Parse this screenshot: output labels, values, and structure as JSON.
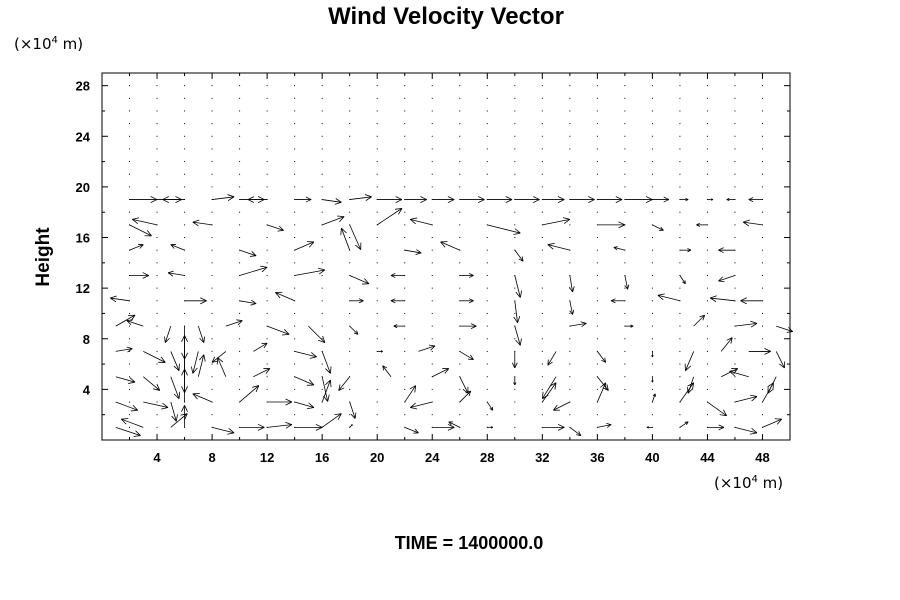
{
  "chart_data": {
    "type": "vector-field",
    "title": "Wind Velocity Vector",
    "ylabel": "Height",
    "xlabel": "",
    "x_unit": {
      "pre": "(×10",
      "exp": "4",
      "post": " m)"
    },
    "y_unit": {
      "pre": "(×10",
      "exp": "4",
      "post": " m)"
    },
    "time_label": "TIME = 1400000.0",
    "xlim": [
      0,
      50
    ],
    "ylim": [
      0,
      29
    ],
    "xticks": [
      4,
      8,
      12,
      16,
      20,
      24,
      28,
      32,
      36,
      40,
      44,
      48
    ],
    "yticks": [
      4,
      8,
      12,
      16,
      20,
      24,
      28
    ],
    "grid": {
      "x_start": 2,
      "x_step": 2,
      "x_count": 25,
      "y_start": 1,
      "y_step": 1,
      "y_count": 28
    },
    "vectors": [
      {
        "x": 2,
        "y": 19,
        "u": 2.0,
        "v": 0.0
      },
      {
        "x": 4,
        "y": 19,
        "u": 1.8,
        "v": 0.0
      },
      {
        "x": 6,
        "y": 19,
        "u": -1.6,
        "v": 0.0
      },
      {
        "x": 8,
        "y": 19,
        "u": 1.6,
        "v": 0.2
      },
      {
        "x": 10,
        "y": 19,
        "u": 1.8,
        "v": 0.0
      },
      {
        "x": 12,
        "y": 19,
        "u": -1.4,
        "v": 0.0
      },
      {
        "x": 14,
        "y": 19,
        "u": 1.2,
        "v": 0.0
      },
      {
        "x": 16,
        "y": 19,
        "u": 1.4,
        "v": -0.2
      },
      {
        "x": 18,
        "y": 19,
        "u": 1.6,
        "v": 0.2
      },
      {
        "x": 20,
        "y": 19,
        "u": 1.8,
        "v": 0.0
      },
      {
        "x": 22,
        "y": 19,
        "u": 1.6,
        "v": 0.0
      },
      {
        "x": 24,
        "y": 19,
        "u": 1.6,
        "v": 0.0
      },
      {
        "x": 26,
        "y": 19,
        "u": 1.8,
        "v": 0.0
      },
      {
        "x": 28,
        "y": 19,
        "u": 1.8,
        "v": 0.0
      },
      {
        "x": 30,
        "y": 19,
        "u": 1.8,
        "v": 0.0
      },
      {
        "x": 32,
        "y": 19,
        "u": 1.6,
        "v": 0.0
      },
      {
        "x": 34,
        "y": 19,
        "u": 1.8,
        "v": 0.0
      },
      {
        "x": 36,
        "y": 19,
        "u": 1.8,
        "v": 0.0
      },
      {
        "x": 38,
        "y": 19,
        "u": 2.0,
        "v": 0.0
      },
      {
        "x": 40,
        "y": 19,
        "u": 1.2,
        "v": 0.0
      },
      {
        "x": 42,
        "y": 19,
        "u": 0.6,
        "v": 0.0
      },
      {
        "x": 44,
        "y": 19,
        "u": 0.4,
        "v": 0.0
      },
      {
        "x": 46,
        "y": 19,
        "u": -0.6,
        "v": 0.0
      },
      {
        "x": 48,
        "y": 19,
        "u": -1.0,
        "v": 0.0
      },
      {
        "x": 2,
        "y": 17,
        "u": 1.6,
        "v": -0.8
      },
      {
        "x": 4,
        "y": 17,
        "u": -1.8,
        "v": 0.4
      },
      {
        "x": 8,
        "y": 17,
        "u": -1.4,
        "v": 0.2
      },
      {
        "x": 12,
        "y": 17,
        "u": 1.2,
        "v": -0.4
      },
      {
        "x": 16,
        "y": 17,
        "u": 1.6,
        "v": 0.6
      },
      {
        "x": 18,
        "y": 17,
        "u": 0.8,
        "v": -1.8
      },
      {
        "x": 20,
        "y": 17,
        "u": 1.8,
        "v": 1.2
      },
      {
        "x": 24,
        "y": 17,
        "u": -1.6,
        "v": 0.4
      },
      {
        "x": 28,
        "y": 17,
        "u": 2.4,
        "v": -0.6
      },
      {
        "x": 32,
        "y": 17,
        "u": 2.0,
        "v": 0.4
      },
      {
        "x": 36,
        "y": 17,
        "u": 2.0,
        "v": 0.0
      },
      {
        "x": 40,
        "y": 17,
        "u": 0.8,
        "v": -0.4
      },
      {
        "x": 44,
        "y": 17,
        "u": -0.8,
        "v": 0.0
      },
      {
        "x": 48,
        "y": 17,
        "u": -1.4,
        "v": 0.2
      },
      {
        "x": 2,
        "y": 15,
        "u": 1.0,
        "v": 0.4
      },
      {
        "x": 6,
        "y": 15,
        "u": -1.0,
        "v": 0.4
      },
      {
        "x": 10,
        "y": 15,
        "u": 1.2,
        "v": -0.4
      },
      {
        "x": 14,
        "y": 15,
        "u": 1.4,
        "v": 0.6
      },
      {
        "x": 18,
        "y": 15,
        "u": -0.6,
        "v": 1.6
      },
      {
        "x": 22,
        "y": 15,
        "u": 1.2,
        "v": -0.2
      },
      {
        "x": 26,
        "y": 15,
        "u": -1.4,
        "v": 0.6
      },
      {
        "x": 30,
        "y": 15,
        "u": 0.6,
        "v": -0.8
      },
      {
        "x": 34,
        "y": 15,
        "u": -1.6,
        "v": 0.4
      },
      {
        "x": 38,
        "y": 15,
        "u": -0.8,
        "v": 0.2
      },
      {
        "x": 42,
        "y": 15,
        "u": 0.8,
        "v": 0.0
      },
      {
        "x": 46,
        "y": 15,
        "u": -1.2,
        "v": 0.0
      },
      {
        "x": 2,
        "y": 13,
        "u": 1.4,
        "v": 0.0
      },
      {
        "x": 6,
        "y": 13,
        "u": -1.2,
        "v": 0.2
      },
      {
        "x": 10,
        "y": 13,
        "u": 2.0,
        "v": 0.6
      },
      {
        "x": 14,
        "y": 13,
        "u": 2.2,
        "v": 0.4
      },
      {
        "x": 18,
        "y": 13,
        "u": 1.4,
        "v": -0.6
      },
      {
        "x": 22,
        "y": 13,
        "u": -1.0,
        "v": 0.0
      },
      {
        "x": 26,
        "y": 13,
        "u": 1.0,
        "v": 0.0
      },
      {
        "x": 30,
        "y": 13,
        "u": 0.4,
        "v": -1.6
      },
      {
        "x": 34,
        "y": 13,
        "u": 0.2,
        "v": -1.2
      },
      {
        "x": 38,
        "y": 13,
        "u": 0.2,
        "v": -1.0
      },
      {
        "x": 42,
        "y": 13,
        "u": 0.4,
        "v": -0.6
      },
      {
        "x": 46,
        "y": 13,
        "u": -1.2,
        "v": -0.4
      },
      {
        "x": 2,
        "y": 11,
        "u": -1.4,
        "v": 0.2
      },
      {
        "x": 6,
        "y": 11,
        "u": 1.6,
        "v": 0.0
      },
      {
        "x": 10,
        "y": 11,
        "u": 1.2,
        "v": -0.2
      },
      {
        "x": 14,
        "y": 11,
        "u": -1.4,
        "v": 0.6
      },
      {
        "x": 18,
        "y": 11,
        "u": 1.0,
        "v": 0.0
      },
      {
        "x": 22,
        "y": 11,
        "u": -1.0,
        "v": 0.0
      },
      {
        "x": 26,
        "y": 11,
        "u": 1.0,
        "v": 0.0
      },
      {
        "x": 30,
        "y": 11,
        "u": 0.2,
        "v": -1.6
      },
      {
        "x": 34,
        "y": 11,
        "u": 0.2,
        "v": -1.0
      },
      {
        "x": 38,
        "y": 11,
        "u": -1.0,
        "v": 0.0
      },
      {
        "x": 42,
        "y": 11,
        "u": -1.6,
        "v": 0.4
      },
      {
        "x": 46,
        "y": 11,
        "u": -1.8,
        "v": 0.2
      },
      {
        "x": 48,
        "y": 11,
        "u": -1.6,
        "v": 0.0
      },
      {
        "x": 1,
        "y": 9,
        "u": 1.4,
        "v": 0.8
      },
      {
        "x": 3,
        "y": 9,
        "u": -1.2,
        "v": 0.4
      },
      {
        "x": 5,
        "y": 9,
        "u": -0.4,
        "v": -1.2
      },
      {
        "x": 6,
        "y": 9,
        "u": 0.0,
        "v": -2.4
      },
      {
        "x": 7,
        "y": 9,
        "u": 0.4,
        "v": -1.2
      },
      {
        "x": 9,
        "y": 9,
        "u": 1.2,
        "v": 0.4
      },
      {
        "x": 12,
        "y": 9,
        "u": 1.6,
        "v": -0.6
      },
      {
        "x": 15,
        "y": 9,
        "u": 1.2,
        "v": -1.2
      },
      {
        "x": 18,
        "y": 9,
        "u": 0.6,
        "v": -0.6
      },
      {
        "x": 22,
        "y": 9,
        "u": -0.8,
        "v": 0.0
      },
      {
        "x": 26,
        "y": 9,
        "u": 1.2,
        "v": 0.0
      },
      {
        "x": 30,
        "y": 9,
        "u": 0.4,
        "v": -1.4
      },
      {
        "x": 34,
        "y": 9,
        "u": 1.2,
        "v": 0.2
      },
      {
        "x": 38,
        "y": 9,
        "u": 0.6,
        "v": 0.0
      },
      {
        "x": 43,
        "y": 9,
        "u": 0.8,
        "v": 0.8
      },
      {
        "x": 46,
        "y": 9,
        "u": 1.6,
        "v": 0.2
      },
      {
        "x": 49,
        "y": 9,
        "u": 1.2,
        "v": -0.4
      },
      {
        "x": 1,
        "y": 7,
        "u": 1.2,
        "v": 0.2
      },
      {
        "x": 3,
        "y": 7,
        "u": 1.6,
        "v": -0.8
      },
      {
        "x": 5,
        "y": 7,
        "u": 0.6,
        "v": -1.4
      },
      {
        "x": 6,
        "y": 7,
        "u": 0.0,
        "v": -3.0
      },
      {
        "x": 7,
        "y": 7,
        "u": -0.4,
        "v": -1.6
      },
      {
        "x": 9,
        "y": 7,
        "u": -1.0,
        "v": -0.8
      },
      {
        "x": 11,
        "y": 7,
        "u": 1.0,
        "v": 0.6
      },
      {
        "x": 14,
        "y": 7,
        "u": 1.6,
        "v": -0.4
      },
      {
        "x": 16,
        "y": 7,
        "u": 0.6,
        "v": -1.6
      },
      {
        "x": 20,
        "y": 7,
        "u": 0.4,
        "v": 0.0
      },
      {
        "x": 23,
        "y": 7,
        "u": 1.2,
        "v": 0.4
      },
      {
        "x": 26,
        "y": 7,
        "u": 1.0,
        "v": -0.6
      },
      {
        "x": 30,
        "y": 7,
        "u": 0.0,
        "v": -1.2
      },
      {
        "x": 33,
        "y": 7,
        "u": -0.6,
        "v": -1.0
      },
      {
        "x": 36,
        "y": 7,
        "u": 0.6,
        "v": -0.8
      },
      {
        "x": 40,
        "y": 7,
        "u": 0.0,
        "v": -0.4
      },
      {
        "x": 43,
        "y": 7,
        "u": -0.6,
        "v": -1.4
      },
      {
        "x": 45,
        "y": 7,
        "u": 0.8,
        "v": 1.0
      },
      {
        "x": 47,
        "y": 7,
        "u": 1.6,
        "v": 0.0
      },
      {
        "x": 49,
        "y": 7,
        "u": 0.6,
        "v": -1.2
      },
      {
        "x": 1,
        "y": 5,
        "u": 1.4,
        "v": -0.4
      },
      {
        "x": 3,
        "y": 5,
        "u": 1.2,
        "v": -1.0
      },
      {
        "x": 5,
        "y": 5,
        "u": 0.6,
        "v": -1.6
      },
      {
        "x": 6,
        "y": 5,
        "u": 0.0,
        "v": 3.0
      },
      {
        "x": 7,
        "y": 5,
        "u": 0.4,
        "v": 1.6
      },
      {
        "x": 9,
        "y": 5,
        "u": -0.6,
        "v": 1.4
      },
      {
        "x": 11,
        "y": 5,
        "u": 1.2,
        "v": 0.6
      },
      {
        "x": 14,
        "y": 5,
        "u": 1.4,
        "v": -0.6
      },
      {
        "x": 16,
        "y": 5,
        "u": 0.4,
        "v": -1.8
      },
      {
        "x": 18,
        "y": 5,
        "u": -0.8,
        "v": -1.0
      },
      {
        "x": 21,
        "y": 5,
        "u": -0.6,
        "v": 0.8
      },
      {
        "x": 24,
        "y": 5,
        "u": 1.2,
        "v": 0.6
      },
      {
        "x": 26,
        "y": 5,
        "u": 0.6,
        "v": -1.2
      },
      {
        "x": 30,
        "y": 5,
        "u": 0.0,
        "v": -0.6
      },
      {
        "x": 33,
        "y": 5,
        "u": -1.0,
        "v": -1.6
      },
      {
        "x": 36,
        "y": 5,
        "u": 0.8,
        "v": -1.0
      },
      {
        "x": 40,
        "y": 5,
        "u": 0.0,
        "v": -0.4
      },
      {
        "x": 43,
        "y": 5,
        "u": -0.4,
        "v": -1.2
      },
      {
        "x": 45,
        "y": 5,
        "u": 1.2,
        "v": 0.6
      },
      {
        "x": 47,
        "y": 5,
        "u": -1.4,
        "v": 0.4
      },
      {
        "x": 49,
        "y": 5,
        "u": -0.6,
        "v": -1.2
      },
      {
        "x": 1,
        "y": 3,
        "u": 1.6,
        "v": -0.6
      },
      {
        "x": 3,
        "y": 3,
        "u": 1.8,
        "v": -0.4
      },
      {
        "x": 5,
        "y": 3,
        "u": 0.4,
        "v": -1.4
      },
      {
        "x": 6,
        "y": 3,
        "u": 0.0,
        "v": 2.4
      },
      {
        "x": 8,
        "y": 3,
        "u": -1.4,
        "v": 0.6
      },
      {
        "x": 10,
        "y": 3,
        "u": 1.4,
        "v": 1.2
      },
      {
        "x": 12,
        "y": 3,
        "u": 1.8,
        "v": 0.0
      },
      {
        "x": 14,
        "y": 3,
        "u": 1.4,
        "v": -0.4
      },
      {
        "x": 16,
        "y": 3,
        "u": 0.6,
        "v": 1.6
      },
      {
        "x": 18,
        "y": 3,
        "u": 0.4,
        "v": -1.2
      },
      {
        "x": 22,
        "y": 3,
        "u": 0.8,
        "v": 1.2
      },
      {
        "x": 24,
        "y": 3,
        "u": -1.6,
        "v": -0.4
      },
      {
        "x": 26,
        "y": 3,
        "u": 0.8,
        "v": 0.8
      },
      {
        "x": 28,
        "y": 3,
        "u": 0.4,
        "v": -0.6
      },
      {
        "x": 32,
        "y": 3,
        "u": 1.0,
        "v": 1.4
      },
      {
        "x": 34,
        "y": 3,
        "u": -1.2,
        "v": -0.6
      },
      {
        "x": 36,
        "y": 3,
        "u": 0.6,
        "v": 1.4
      },
      {
        "x": 40,
        "y": 3,
        "u": 0.2,
        "v": 0.6
      },
      {
        "x": 42,
        "y": 3,
        "u": 1.0,
        "v": 1.4
      },
      {
        "x": 44,
        "y": 3,
        "u": 1.4,
        "v": -1.0
      },
      {
        "x": 46,
        "y": 3,
        "u": 1.6,
        "v": 0.4
      },
      {
        "x": 48,
        "y": 3,
        "u": 0.8,
        "v": 1.4
      },
      {
        "x": 1,
        "y": 1,
        "u": 1.8,
        "v": -0.6
      },
      {
        "x": 3,
        "y": 1,
        "u": -1.6,
        "v": 0.6
      },
      {
        "x": 5,
        "y": 1,
        "u": 1.2,
        "v": 1.0
      },
      {
        "x": 6,
        "y": 1,
        "u": 0.0,
        "v": 1.6
      },
      {
        "x": 8,
        "y": 1,
        "u": 1.6,
        "v": -0.4
      },
      {
        "x": 10,
        "y": 1,
        "u": 1.8,
        "v": 0.0
      },
      {
        "x": 12,
        "y": 1,
        "u": 1.8,
        "v": 0.2
      },
      {
        "x": 14,
        "y": 1,
        "u": 2.0,
        "v": 0.0
      },
      {
        "x": 16,
        "y": 1,
        "u": 1.4,
        "v": 1.0
      },
      {
        "x": 18,
        "y": 1,
        "u": 0.2,
        "v": 0.2
      },
      {
        "x": 22,
        "y": 1,
        "u": 1.0,
        "v": -0.4
      },
      {
        "x": 24,
        "y": 1,
        "u": 1.6,
        "v": 0.0
      },
      {
        "x": 26,
        "y": 1,
        "u": -0.8,
        "v": 0.4
      },
      {
        "x": 28,
        "y": 1,
        "u": 0.4,
        "v": 0.0
      },
      {
        "x": 32,
        "y": 1,
        "u": 1.6,
        "v": 0.0
      },
      {
        "x": 34,
        "y": 1,
        "u": 0.8,
        "v": -0.6
      },
      {
        "x": 36,
        "y": 1,
        "u": 1.0,
        "v": 0.2
      },
      {
        "x": 40,
        "y": 1,
        "u": -0.4,
        "v": 0.0
      },
      {
        "x": 42,
        "y": 1,
        "u": 0.6,
        "v": 0.4
      },
      {
        "x": 44,
        "y": 1,
        "u": 1.2,
        "v": 0.0
      },
      {
        "x": 46,
        "y": 1,
        "u": 1.6,
        "v": -0.4
      },
      {
        "x": 48,
        "y": 1,
        "u": 1.4,
        "v": 0.6
      }
    ]
  }
}
